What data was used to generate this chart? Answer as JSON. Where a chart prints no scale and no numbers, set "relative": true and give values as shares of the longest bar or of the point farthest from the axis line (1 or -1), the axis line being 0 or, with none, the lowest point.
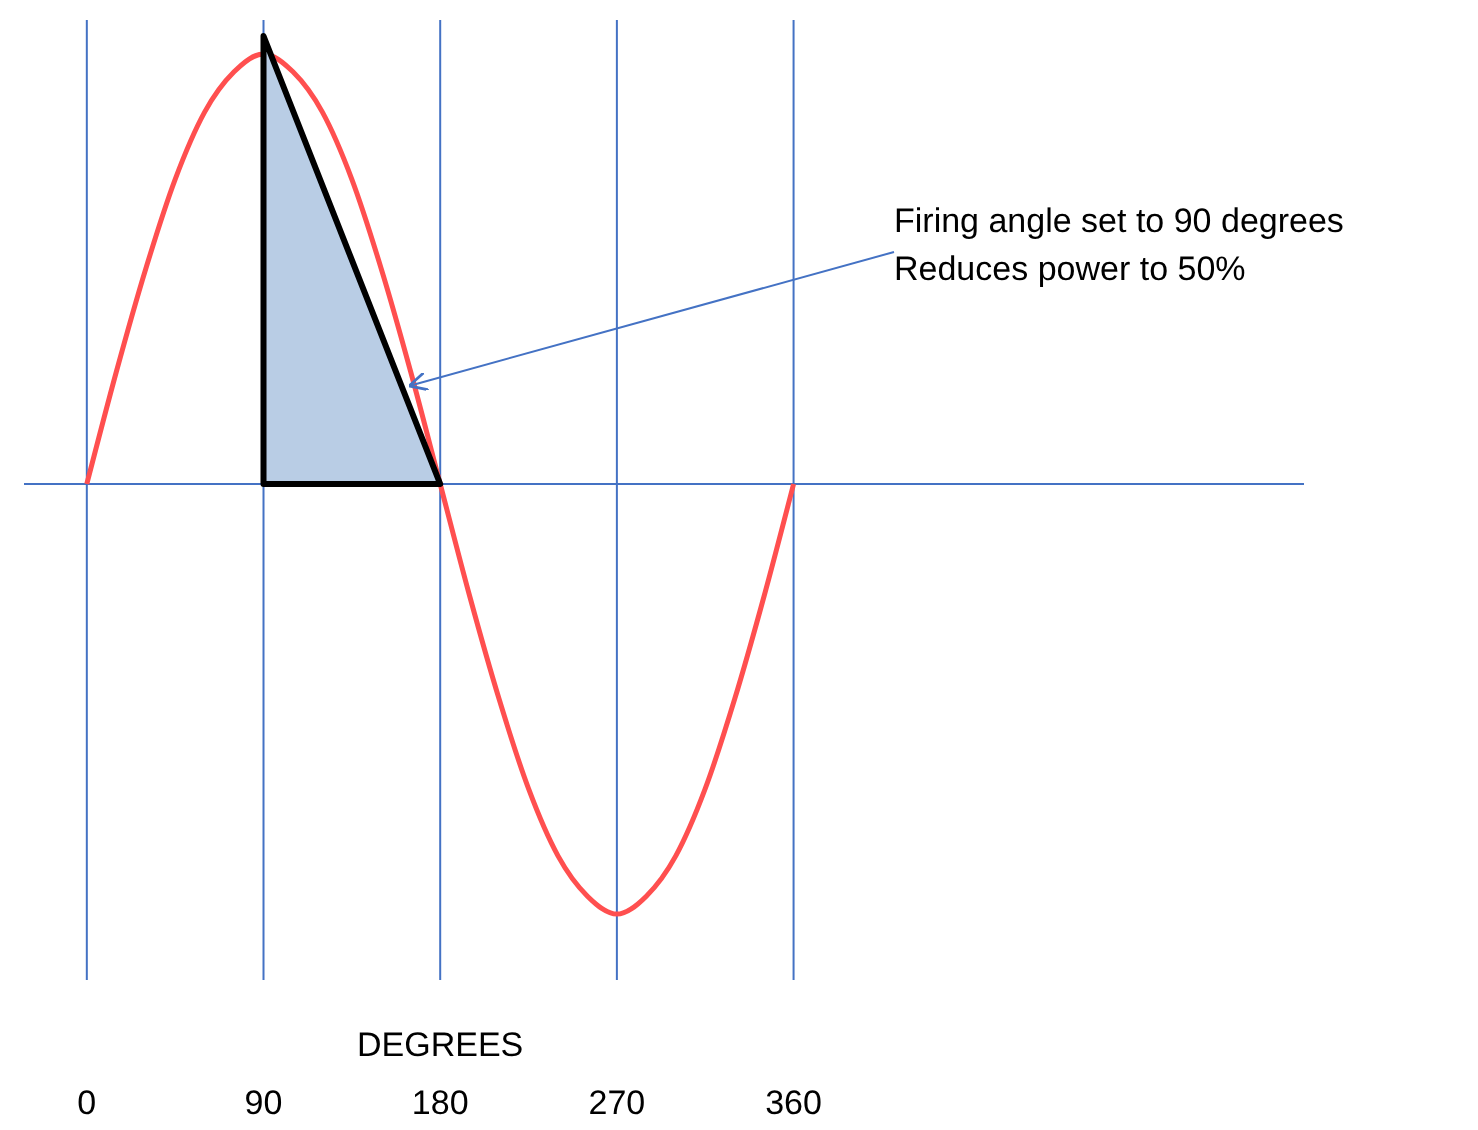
{
  "chart_data": {
    "type": "line",
    "relative": true,
    "xlabel": "DEGREES",
    "xlim": [
      -32,
      620
    ],
    "xticks": [
      0,
      90,
      180,
      270,
      360
    ],
    "grid": "x",
    "marker": "none",
    "line_style": "solid",
    "series": [
      {
        "color": "#ff4f4f",
        "x": [
          0,
          15,
          30,
          45,
          60,
          75,
          90,
          105,
          120,
          135,
          150,
          165,
          180,
          195,
          210,
          225,
          240,
          255,
          270,
          285,
          300,
          315,
          330,
          345,
          360
        ],
        "values": [
          0,
          0.25,
          0.48,
          0.68,
          0.83,
          0.92,
          0.96,
          0.92,
          0.83,
          0.68,
          0.48,
          0.25,
          0,
          -0.25,
          -0.48,
          -0.68,
          -0.83,
          -0.92,
          -0.96,
          -0.92,
          -0.83,
          -0.68,
          -0.48,
          -0.25,
          0
        ]
      },
      {
        "type": "area",
        "color": "#b9cde5",
        "x": [
          90,
          180
        ],
        "values": [
          1,
          0
        ]
      }
    ],
    "annotations": [
      {
        "text": "Firing angle set to 90 degrees\nReduces power to 50%",
        "x": 165,
        "y": 0.22
      }
    ]
  }
}
